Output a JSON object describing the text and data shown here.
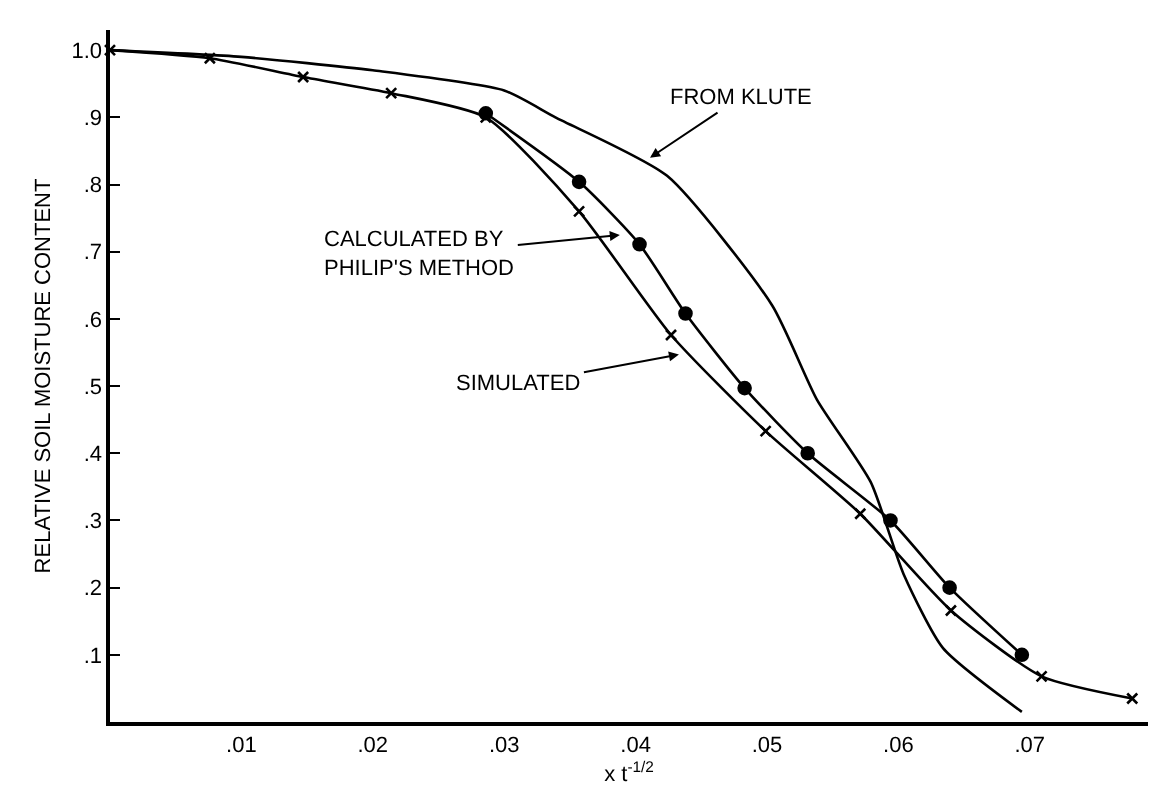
{
  "chart_data": {
    "type": "line",
    "xlabel": "x t$^{-1/2}$",
    "ylabel": "RELATIVE SOIL MOISTURE CONTENT",
    "xlim": [
      0,
      0.079
    ],
    "ylim": [
      0,
      1.03
    ],
    "xticks": [
      {
        "value": 0.01,
        "label": ".01"
      },
      {
        "value": 0.02,
        "label": ".02"
      },
      {
        "value": 0.03,
        "label": ".03"
      },
      {
        "value": 0.04,
        "label": ".04"
      },
      {
        "value": 0.05,
        "label": ".05"
      },
      {
        "value": 0.06,
        "label": ".06"
      },
      {
        "value": 0.07,
        "label": ".07"
      }
    ],
    "yticks": [
      {
        "value": 0.1,
        "label": ".1"
      },
      {
        "value": 0.2,
        "label": ".2"
      },
      {
        "value": 0.3,
        "label": ".3"
      },
      {
        "value": 0.4,
        "label": ".4"
      },
      {
        "value": 0.5,
        "label": ".5"
      },
      {
        "value": 0.6,
        "label": ".6"
      },
      {
        "value": 0.7,
        "label": ".7"
      },
      {
        "value": 0.8,
        "label": ".8"
      },
      {
        "value": 0.9,
        "label": ".9"
      },
      {
        "value": 1.0,
        "label": "1.0"
      }
    ],
    "series": [
      {
        "color": "#000000",
        "marker": "none",
        "x": [
          0,
          0.01,
          0.02,
          0.03,
          0.0339,
          0.0424,
          0.0504,
          0.0538,
          0.0579,
          0.0604,
          0.0634,
          0.0694
        ],
        "values": [
          1.0,
          0.99,
          0.97,
          0.94,
          0.9,
          0.813,
          0.62,
          0.48,
          0.357,
          0.22,
          0.11,
          0.015
        ]
      },
      {
        "color": "#000000",
        "marker": "circle",
        "x": [
          0.0286,
          0.0357,
          0.0403,
          0.0438,
          0.0483,
          0.0531,
          0.0594,
          0.0639,
          0.0694
        ],
        "values": [
          0.906,
          0.804,
          0.711,
          0.608,
          0.497,
          0.4,
          0.3,
          0.2,
          0.1
        ]
      },
      {
        "color": "#000000",
        "marker": "cross",
        "x": [
          0,
          0.0076,
          0.0147,
          0.0214,
          0.0286,
          0.0357,
          0.0427,
          0.0499,
          0.0571,
          0.064,
          0.0709,
          0.0778
        ],
        "values": [
          1.0,
          0.988,
          0.96,
          0.936,
          0.9,
          0.76,
          0.576,
          0.433,
          0.31,
          0.166,
          0.068,
          0.035
        ]
      }
    ],
    "annotations": [
      {
        "text": "FROM KLUTE",
        "x": 0.0411,
        "y": 0.84
      },
      {
        "text": "CALCULATED BY\nPHILIP'S METHOD",
        "x": 0.0388,
        "y": 0.725
      },
      {
        "text": "SIMULATED",
        "x": 0.0433,
        "y": 0.547
      }
    ]
  }
}
